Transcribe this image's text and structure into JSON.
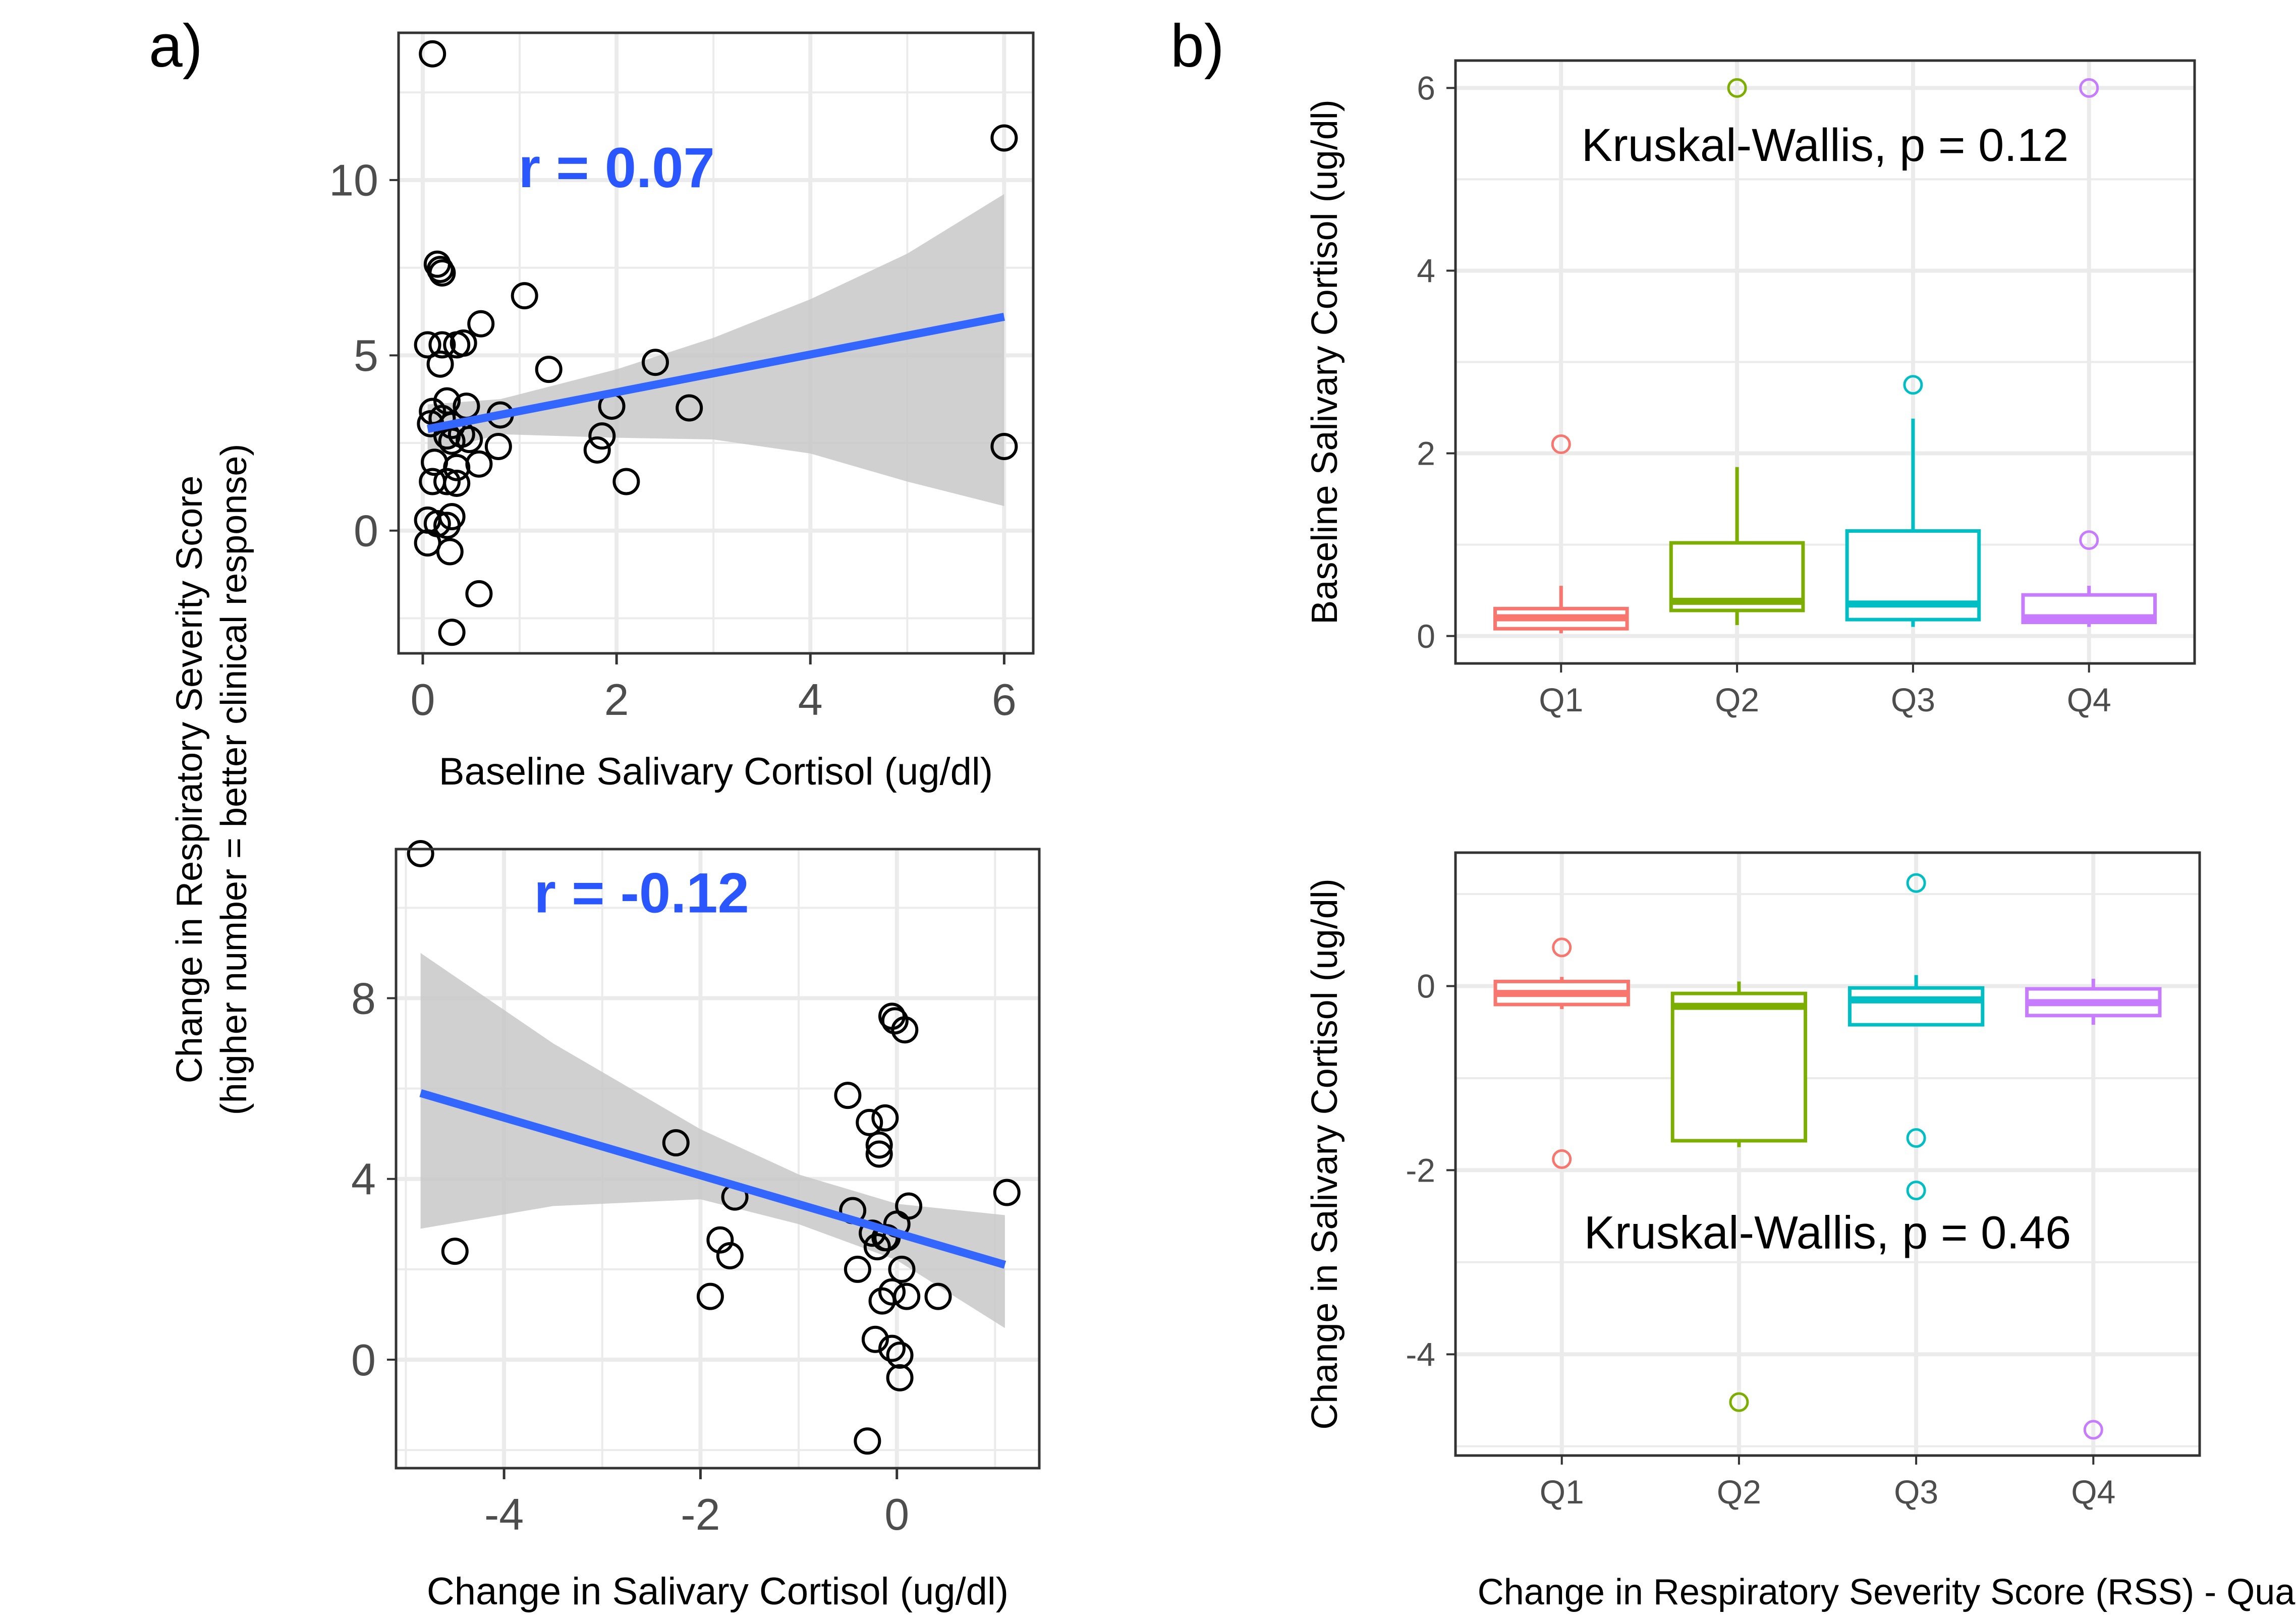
{
  "panel_labels": {
    "a": "a)",
    "b": "b)"
  },
  "shared_ylabel": {
    "line1": "Change in Respiratory Severity Score",
    "line2": "(higher number = better clinical response)"
  },
  "bottom_xlabel": "Change in Respiratory Severity Score (RSS) - Quartiles",
  "colors": {
    "points": "#000000",
    "fit_line": "#3366ff",
    "ribbon": "#c8c8c8",
    "grid": "#ebebeb",
    "panel_border": "#333333",
    "r_text": "#2a56ff",
    "Q1": "#f8766d",
    "Q2": "#7cae00",
    "Q3": "#00bfc4",
    "Q4": "#c77cff"
  },
  "chart_data": [
    {
      "id": "a-top",
      "type": "scatter",
      "xlabel": "Baseline Salivary Cortisol (ug/dl)",
      "ylabel": "",
      "xlim": [
        -0.25,
        6.3
      ],
      "ylim": [
        -3.5,
        14.2
      ],
      "xticks": [
        0,
        2,
        4,
        6
      ],
      "yticks": [
        0,
        5,
        10
      ],
      "annotation": "r = 0.07",
      "annotation_pos": [
        2,
        9.8
      ],
      "fit": {
        "x": [
          0.05,
          6.0
        ],
        "y": [
          2.9,
          6.1
        ]
      },
      "ribbon_upper": [
        [
          0.05,
          3.6
        ],
        [
          0.8,
          3.75
        ],
        [
          2,
          4.6
        ],
        [
          3,
          5.5
        ],
        [
          4,
          6.6
        ],
        [
          5,
          7.9
        ],
        [
          6.0,
          9.6
        ]
      ],
      "ribbon_lower": [
        [
          0.05,
          2.2
        ],
        [
          0.8,
          2.75
        ],
        [
          2,
          2.65
        ],
        [
          3,
          2.6
        ],
        [
          4,
          2.2
        ],
        [
          5,
          1.4
        ],
        [
          6.0,
          0.7
        ]
      ],
      "points": [
        [
          0.1,
          13.6
        ],
        [
          6.0,
          11.2
        ],
        [
          0.15,
          7.6
        ],
        [
          0.18,
          7.45
        ],
        [
          0.2,
          7.35
        ],
        [
          1.05,
          6.7
        ],
        [
          0.6,
          5.9
        ],
        [
          0.05,
          5.3
        ],
        [
          0.2,
          5.3
        ],
        [
          0.35,
          5.3
        ],
        [
          0.42,
          5.35
        ],
        [
          0.18,
          4.75
        ],
        [
          1.3,
          4.6
        ],
        [
          2.4,
          4.8
        ],
        [
          0.25,
          3.7
        ],
        [
          0.45,
          3.55
        ],
        [
          0.1,
          3.4
        ],
        [
          0.2,
          3.2
        ],
        [
          0.08,
          3.05
        ],
        [
          0.3,
          3.0
        ],
        [
          0.8,
          3.3
        ],
        [
          1.95,
          3.55
        ],
        [
          2.75,
          3.5
        ],
        [
          0.25,
          2.7
        ],
        [
          0.3,
          2.55
        ],
        [
          0.4,
          2.75
        ],
        [
          0.48,
          2.6
        ],
        [
          0.78,
          2.4
        ],
        [
          1.85,
          2.7
        ],
        [
          1.8,
          2.3
        ],
        [
          6.0,
          2.4
        ],
        [
          0.12,
          1.95
        ],
        [
          0.35,
          1.8
        ],
        [
          0.58,
          1.9
        ],
        [
          0.1,
          1.4
        ],
        [
          0.25,
          1.4
        ],
        [
          0.35,
          1.35
        ],
        [
          2.1,
          1.4
        ],
        [
          0.3,
          0.4
        ],
        [
          0.05,
          0.3
        ],
        [
          0.15,
          0.2
        ],
        [
          0.25,
          0.15
        ],
        [
          0.05,
          -0.35
        ],
        [
          0.28,
          -0.6
        ],
        [
          0.58,
          -1.8
        ],
        [
          0.3,
          -2.9
        ]
      ]
    },
    {
      "id": "a-bottom",
      "type": "scatter",
      "xlabel": "Change in Salivary Cortisol (ug/dl)",
      "ylabel": "",
      "xlim": [
        -5.1,
        1.45
      ],
      "ylim": [
        -2.4,
        11.3
      ],
      "xticks": [
        -4,
        -2,
        0
      ],
      "yticks": [
        0,
        4,
        8
      ],
      "annotation": "r = -0.12",
      "annotation_pos": [
        -2.6,
        9.9
      ],
      "fit": {
        "x": [
          -4.85,
          1.1
        ],
        "y": [
          5.9,
          2.1
        ]
      },
      "ribbon_upper": [
        [
          -4.85,
          9.0
        ],
        [
          -3.5,
          7.0
        ],
        [
          -2,
          5.1
        ],
        [
          -1,
          4.1
        ],
        [
          0,
          3.45
        ],
        [
          1.1,
          3.2
        ]
      ],
      "ribbon_lower": [
        [
          -4.85,
          2.9
        ],
        [
          -3.5,
          3.4
        ],
        [
          -2,
          3.55
        ],
        [
          -1,
          3.0
        ],
        [
          0,
          2.2
        ],
        [
          1.1,
          0.7
        ]
      ],
      "points": [
        [
          -4.85,
          11.2
        ],
        [
          -4.5,
          2.4
        ],
        [
          -2.25,
          4.8
        ],
        [
          -1.9,
          1.4
        ],
        [
          -1.8,
          2.65
        ],
        [
          -1.7,
          2.3
        ],
        [
          -1.65,
          3.6
        ],
        [
          -0.5,
          5.85
        ],
        [
          -0.45,
          3.3
        ],
        [
          -0.4,
          2.0
        ],
        [
          -0.28,
          5.25
        ],
        [
          -0.18,
          4.75
        ],
        [
          -0.18,
          4.55
        ],
        [
          -0.12,
          5.35
        ],
        [
          -0.05,
          7.6
        ],
        [
          -0.02,
          7.5
        ],
        [
          0.08,
          7.3
        ],
        [
          -0.25,
          2.8
        ],
        [
          -0.2,
          2.5
        ],
        [
          -0.12,
          2.7
        ],
        [
          0.0,
          3.0
        ],
        [
          0.12,
          3.4
        ],
        [
          0.05,
          2.0
        ],
        [
          -0.15,
          1.3
        ],
        [
          -0.05,
          1.5
        ],
        [
          0.1,
          1.4
        ],
        [
          0.42,
          1.4
        ],
        [
          1.12,
          3.7
        ],
        [
          -0.22,
          0.45
        ],
        [
          -0.05,
          0.25
        ],
        [
          0.03,
          0.1
        ],
        [
          0.03,
          -0.4
        ],
        [
          -0.3,
          -1.8
        ],
        [
          -0.1,
          2.7
        ]
      ]
    },
    {
      "id": "b-top",
      "type": "box",
      "ylabel": "Baseline Salivary Cortisol (ug/dl)",
      "xlabel": "",
      "categories": [
        "Q1",
        "Q2",
        "Q3",
        "Q4"
      ],
      "ylim": [
        -0.3,
        6.3
      ],
      "yticks": [
        0,
        2,
        4,
        6
      ],
      "annotation": "Kruskal-Wallis, p = 0.12",
      "annotation_pos": [
        2.5,
        5.2
      ],
      "boxes": [
        {
          "q1": 0.08,
          "median": 0.2,
          "q3": 0.3,
          "whisker_low": 0.03,
          "whisker_high": 0.55,
          "outliers": [
            2.1
          ]
        },
        {
          "q1": 0.28,
          "median": 0.38,
          "q3": 1.02,
          "whisker_low": 0.12,
          "whisker_high": 1.85,
          "outliers": [
            6.0
          ]
        },
        {
          "q1": 0.18,
          "median": 0.35,
          "q3": 1.15,
          "whisker_low": 0.1,
          "whisker_high": 2.38,
          "outliers": [
            2.75
          ]
        },
        {
          "q1": 0.15,
          "median": 0.2,
          "q3": 0.45,
          "whisker_low": 0.1,
          "whisker_high": 0.55,
          "outliers": [
            1.05,
            6.0
          ]
        }
      ]
    },
    {
      "id": "b-bottom",
      "type": "box",
      "ylabel": "Change in Salivary Cortisol (ug/dl)",
      "xlabel": "",
      "categories": [
        "Q1",
        "Q2",
        "Q3",
        "Q4"
      ],
      "ylim": [
        -5.1,
        1.45
      ],
      "yticks": [
        -4,
        -2,
        0
      ],
      "annotation": "Kruskal-Wallis, p = 0.46",
      "annotation_pos": [
        2.5,
        -2.85
      ],
      "boxes": [
        {
          "q1": -0.2,
          "median": -0.08,
          "q3": 0.05,
          "whisker_low": -0.25,
          "whisker_high": 0.1,
          "outliers": [
            0.42,
            -1.88
          ]
        },
        {
          "q1": -1.68,
          "median": -0.22,
          "q3": -0.08,
          "whisker_low": -1.75,
          "whisker_high": 0.05,
          "outliers": [
            -4.52
          ]
        },
        {
          "q1": -0.42,
          "median": -0.15,
          "q3": -0.02,
          "whisker_low": -0.42,
          "whisker_high": 0.12,
          "outliers": [
            1.12,
            -1.65,
            -2.22
          ]
        },
        {
          "q1": -0.32,
          "median": -0.18,
          "q3": -0.03,
          "whisker_low": -0.42,
          "whisker_high": 0.08,
          "outliers": [
            -4.82
          ]
        }
      ]
    }
  ]
}
